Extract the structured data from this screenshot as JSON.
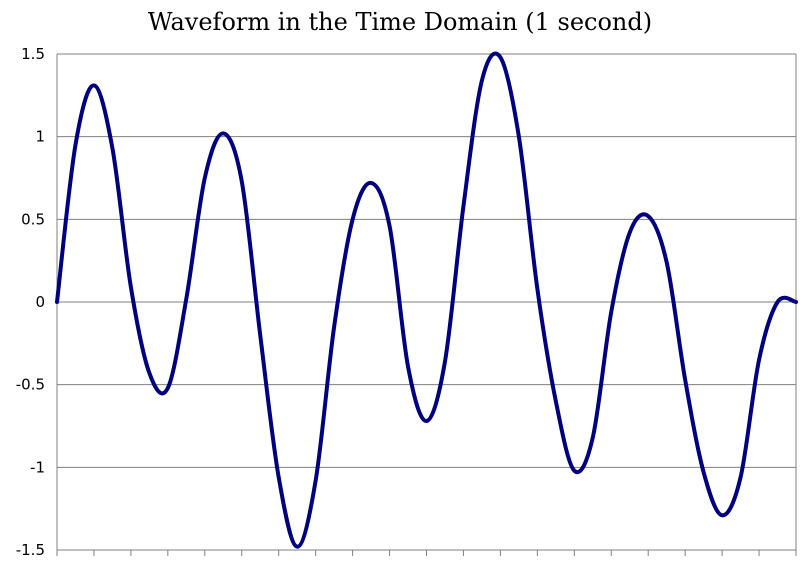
{
  "chart_data": {
    "type": "line",
    "title": "Waveform in the Time Domain (1 second)",
    "xlabel": "",
    "ylabel": "",
    "ylim": [
      -1.5,
      1.5
    ],
    "xlim": [
      0,
      1
    ],
    "y_ticks": [
      "1.5",
      "1",
      "0.5",
      "0",
      "-0.5",
      "-1",
      "-1.5"
    ],
    "x_tick_count": 20,
    "grid": true,
    "series_color": "#000080",
    "x": [
      0,
      0.025,
      0.05,
      0.075,
      0.1,
      0.125,
      0.15,
      0.175,
      0.2,
      0.225,
      0.25,
      0.275,
      0.3,
      0.325,
      0.35,
      0.375,
      0.4,
      0.425,
      0.45,
      0.475,
      0.5,
      0.525,
      0.55,
      0.575,
      0.6,
      0.625,
      0.65,
      0.675,
      0.7,
      0.725,
      0.75,
      0.775,
      0.8,
      0.825,
      0.85,
      0.875,
      0.9,
      0.925,
      0.95,
      0.975,
      1.0
    ],
    "y": [
      0,
      0.95,
      1.31,
      0.93,
      0.09,
      -0.43,
      -0.52,
      0.02,
      0.75,
      1.02,
      0.73,
      -0.2,
      -1.06,
      -1.48,
      -1.08,
      -0.15,
      0.5,
      0.72,
      0.46,
      -0.39,
      -0.72,
      -0.36,
      0.58,
      1.34,
      1.48,
      1.0,
      0.08,
      -0.6,
      -1.02,
      -0.82,
      -0.06,
      0.42,
      0.52,
      0.24,
      -0.47,
      -1.03,
      -1.29,
      -1.06,
      -0.35,
      0.0,
      0.0
    ]
  }
}
